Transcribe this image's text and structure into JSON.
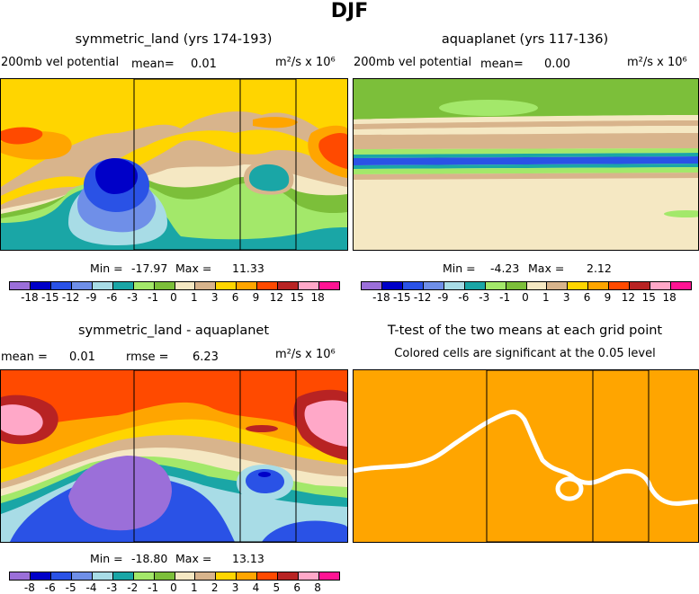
{
  "title": "DJF",
  "palette": [
    "#9b6fd9",
    "#0000c8",
    "#2a52e6",
    "#6f8fe8",
    "#a8dce6",
    "#1aa6a6",
    "#a3e86a",
    "#7cbf3a",
    "#f5e8c3",
    "#d8b48c",
    "#ffd500",
    "#ffa500",
    "#ff4a00",
    "#b82323",
    "#ffa8c8",
    "#ff1493"
  ],
  "land_outline": [
    "#000000"
  ],
  "chart_data": [
    {
      "type": "heatmap",
      "title": "symmetric_land (yrs 174-193)",
      "variable": "200mb vel potential",
      "mean_label": "mean=",
      "mean": "0.01",
      "units": "m²/s x 10⁶",
      "min_label": "Min =",
      "min": "-17.97",
      "max_label": "Max =",
      "max": "11.33",
      "colorbar_ticks": [
        "-18",
        "-15",
        "-12",
        "-9",
        "-6",
        "-3",
        "-1",
        "0",
        "1",
        "3",
        "6",
        "9",
        "12",
        "15",
        "18"
      ]
    },
    {
      "type": "heatmap",
      "title": "aquaplanet (yrs 117-136)",
      "variable": "200mb vel potential",
      "mean_label": "mean=",
      "mean": "0.00",
      "units": "m²/s x 10⁶",
      "min_label": "Min =",
      "min": "-4.23",
      "max_label": "Max =",
      "max": "2.12",
      "colorbar_ticks": [
        "-18",
        "-15",
        "-12",
        "-9",
        "-6",
        "-3",
        "-1",
        "0",
        "1",
        "3",
        "6",
        "9",
        "12",
        "15",
        "18"
      ]
    },
    {
      "type": "heatmap",
      "title": "symmetric_land - aquaplanet",
      "mean_label": "mean =",
      "mean": "0.01",
      "rmse_label": "rmse =",
      "rmse": "6.23",
      "units": "m²/s x 10⁶",
      "min_label": "Min =",
      "min": "-18.80",
      "max_label": "Max =",
      "max": "13.13",
      "colorbar_ticks": [
        "-8",
        "-6",
        "-5",
        "-4",
        "-3",
        "-2",
        "-1",
        "0",
        "1",
        "2",
        "3",
        "4",
        "5",
        "6",
        "8"
      ]
    },
    {
      "type": "heatmap",
      "title": "T-test of the two means at each grid point",
      "subtitle": "Colored cells are significant at the 0.05 level",
      "significant_color": "#ffa500"
    }
  ]
}
